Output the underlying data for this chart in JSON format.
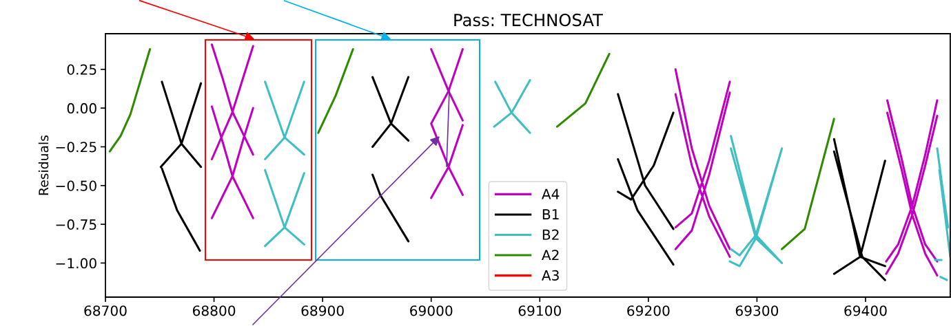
{
  "chart_data": {
    "type": "line",
    "title": "Pass: TECHNOSAT",
    "ylabel": "Residuals",
    "xlim": [
      68700,
      69478
    ],
    "xticks": [
      68700,
      68800,
      68900,
      69000,
      69100,
      69200,
      69300,
      69400
    ],
    "ylim": [
      -1.22,
      0.48
    ],
    "yticks": [
      {
        "value": -1.0,
        "label": "−1.00"
      },
      {
        "value": -0.75,
        "label": "−0.75"
      },
      {
        "value": -0.5,
        "label": "−0.50"
      },
      {
        "value": -0.25,
        "label": "−0.25"
      },
      {
        "value": 0.0,
        "label": "0.00"
      },
      {
        "value": 0.25,
        "label": "0.25"
      }
    ],
    "grid": false,
    "legend": "bottom",
    "marker": "none",
    "line_style": "solid",
    "series": [
      {
        "name": "A4",
        "color": "#bf00bf",
        "x": [
          68798,
          68808,
          68817,
          68836,
          null,
          68836,
          68827,
          68817,
          68798,
          null,
          68798,
          68808,
          68817,
          68836,
          null,
          68836,
          68827,
          68817,
          68798,
          null,
          69000,
          69016,
          69029,
          null,
          69029,
          69016,
          69000,
          null,
          69000,
          69016,
          69029,
          null,
          69029,
          69016,
          69000,
          null,
          69225,
          69240,
          69256,
          69275,
          null,
          69225,
          69240,
          69256,
          69275,
          null,
          69225,
          69240,
          69256,
          69275,
          null,
          69225,
          69240,
          69256,
          69275,
          null,
          69420,
          69433,
          69443,
          69455,
          69466,
          null,
          69420,
          69433,
          69443,
          69455,
          69466,
          null,
          69419,
          69430,
          69443,
          69455,
          69466,
          null,
          69419,
          69430,
          69443,
          69455,
          69466
        ],
        "values": [
          0.41,
          0.19,
          -0.025,
          -0.3,
          null,
          0.4,
          0.2,
          -0.025,
          -0.33,
          null,
          0.01,
          -0.22,
          -0.44,
          -0.71,
          null,
          0.0,
          -0.2,
          -0.44,
          -0.71,
          null,
          0.38,
          0.11,
          -0.08,
          null,
          0.38,
          0.11,
          -0.1,
          null,
          -0.1,
          -0.38,
          -0.56,
          null,
          -0.11,
          -0.38,
          -0.58,
          null,
          0.25,
          -0.26,
          -0.63,
          -0.91,
          null,
          0.09,
          -0.37,
          -0.7,
          -0.96,
          null,
          -0.77,
          -0.68,
          -0.34,
          0.17,
          null,
          -0.91,
          -0.79,
          -0.43,
          0.1,
          null,
          0.05,
          -0.32,
          -0.63,
          -0.88,
          -0.99,
          null,
          -0.03,
          -0.39,
          -0.69,
          -0.94,
          -1.08,
          null,
          -0.99,
          -0.88,
          -0.63,
          -0.3,
          0.05,
          null,
          -1.07,
          -0.94,
          -0.69,
          -0.37,
          -0.05
        ]
      },
      {
        "name": "B1",
        "color": "#000000",
        "x": [
          68752,
          68770,
          68788,
          null,
          68751,
          68770,
          68788,
          null,
          68752,
          68766,
          68787,
          null,
          68946,
          68963,
          68979,
          null,
          68946,
          68963,
          68979,
          null,
          68946,
          68953,
          68979,
          null,
          69172,
          69197,
          69223,
          null,
          69172,
          69184,
          69205,
          69223,
          null,
          69172,
          69190,
          69223,
          null,
          69371,
          69395,
          69418,
          null,
          69371,
          69397,
          69418,
          null,
          69371,
          69395,
          69418
        ],
        "values": [
          0.17,
          -0.23,
          -0.38,
          null,
          -0.38,
          -0.23,
          0.16,
          null,
          -0.39,
          -0.66,
          -0.92,
          null,
          0.2,
          -0.1,
          -0.21,
          null,
          -0.25,
          -0.1,
          0.2,
          null,
          -0.43,
          -0.56,
          -0.86,
          null,
          0.09,
          -0.5,
          -0.78,
          null,
          -0.54,
          -0.59,
          -0.37,
          -0.03,
          null,
          -0.33,
          -0.66,
          -1.01,
          null,
          -0.2,
          -0.96,
          -1.02,
          null,
          -0.28,
          -0.96,
          -1.11,
          null,
          -1.07,
          -0.96,
          -0.34
        ]
      },
      {
        "name": "B2",
        "color": "#3fbfc2",
        "x": [
          68847,
          68865,
          68883,
          null,
          68883,
          68865,
          68847,
          null,
          68847,
          68865,
          68883,
          null,
          68883,
          68865,
          68847,
          null,
          69059,
          69074,
          69091,
          null,
          69091,
          69074,
          69058,
          null,
          69276,
          69299,
          69323,
          null,
          69276,
          69299,
          69323,
          null,
          69276,
          69284,
          69299,
          69323,
          null,
          69275,
          69284,
          69299,
          69323,
          null,
          69466,
          69471,
          69476,
          null,
          69468,
          69473,
          69478,
          null,
          69464,
          69470,
          null,
          69469,
          69475
        ],
        "values": [
          0.17,
          -0.19,
          -0.3,
          null,
          0.17,
          -0.19,
          -0.33,
          null,
          -0.4,
          -0.77,
          -0.88,
          null,
          -0.42,
          -0.77,
          -0.89,
          null,
          0.17,
          -0.03,
          -0.16,
          null,
          0.18,
          -0.03,
          -0.12,
          null,
          -0.18,
          -0.82,
          -1.0,
          null,
          -0.26,
          -0.84,
          -1.0,
          null,
          -0.91,
          -0.95,
          -0.82,
          -0.26,
          null,
          -0.99,
          -1.02,
          -0.84,
          -0.26,
          null,
          -0.26,
          -0.52,
          -0.77,
          null,
          -0.4,
          -0.68,
          -0.96,
          null,
          -0.98,
          -0.98,
          null,
          -1.09,
          -1.11
        ]
      },
      {
        "name": "A2",
        "color": "#2e8b00",
        "x": [
          68704,
          68714,
          68723,
          68741,
          null,
          68896,
          68912,
          68928,
          null,
          69116,
          69142,
          69164,
          null,
          69323,
          69344,
          69371
        ],
        "values": [
          -0.28,
          -0.18,
          -0.04,
          0.38,
          null,
          -0.16,
          0.08,
          0.38,
          null,
          -0.12,
          0.03,
          0.35,
          null,
          -0.91,
          -0.78,
          -0.07
        ]
      },
      {
        "name": "A3",
        "color": "#ff0000"
      }
    ]
  }
}
